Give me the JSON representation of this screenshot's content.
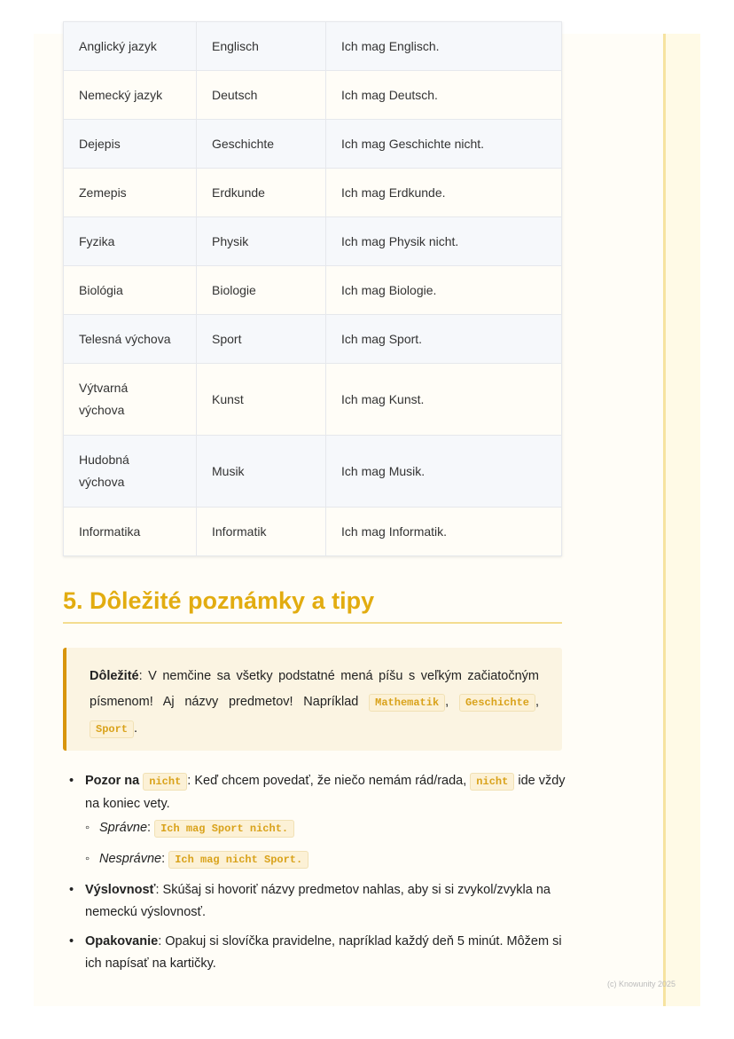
{
  "table": {
    "rows": [
      [
        "Anglický jazyk",
        "Englisch",
        "Ich mag Englisch."
      ],
      [
        "Nemecký jazyk",
        "Deutsch",
        "Ich mag Deutsch."
      ],
      [
        "Dejepis",
        "Geschichte",
        "Ich mag Geschichte nicht."
      ],
      [
        "Zemepis",
        "Erdkunde",
        "Ich mag Erdkunde."
      ],
      [
        "Fyzika",
        "Physik",
        "Ich mag Physik nicht."
      ],
      [
        "Biológia",
        "Biologie",
        "Ich mag Biologie."
      ],
      [
        "Telesná výchova",
        "Sport",
        "Ich mag Sport."
      ],
      [
        "Výtvarná výchova",
        "Kunst",
        "Ich mag Kunst."
      ],
      [
        "Hudobná výchova",
        "Musik",
        "Ich mag Musik."
      ],
      [
        "Informatika",
        "Informatik",
        "Ich mag Informatik."
      ]
    ]
  },
  "section": {
    "title": "5. Dôležité poznámky a tipy"
  },
  "callout": {
    "bold": "Dôležité",
    "text": ": V nemčine sa všetky podstatné mená píšu s veľkým začiatočným písmenom! Aj názvy predmetov! Napríklad ",
    "code1": "Mathematik",
    "code2": "Geschichte",
    "code3": "Sport"
  },
  "bullets": {
    "b1": {
      "bold": "Pozor na",
      "code": "nicht",
      "text": ": Keď chcem povedať, že niečo nemám rád/rada, ",
      "code2": "nicht",
      "text2": " ide vždy na koniec vety.",
      "sub1_label": "Správne",
      "sub1_code": "Ich mag Sport nicht.",
      "sub2_label": "Nesprávne",
      "sub2_code": "Ich mag nicht Sport."
    },
    "b2": {
      "bold": "Výslovnosť",
      "text": ": Skúšaj si hovoriť názvy predmetov nahlas, aby si si zvykol/zvykla na nemeckú výslovnosť."
    },
    "b3": {
      "bold": "Opakovanie",
      "text": ": Opakuj si slovíčka pravidelne, napríklad každý deň 5 minút. Môžem si ich napísať na kartičky."
    }
  },
  "footer": "(c) Knowunity 2025"
}
